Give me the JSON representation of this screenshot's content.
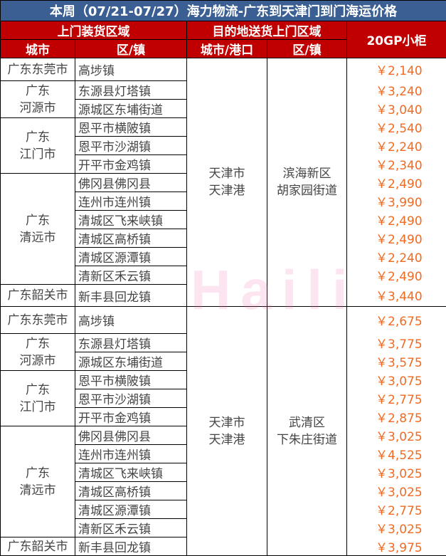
{
  "title": "本周（07/21-07/27）海力物流-广东到天津门到门海运价格",
  "headers": {
    "origin": "上门装货区域",
    "dest": "目的地送货上门区域",
    "price": "20GP小柜",
    "city": "城市",
    "town": "区/镇",
    "port": "城市/港口",
    "dest_town": "区/镇"
  },
  "watermark": "Haili",
  "blocks": [
    {
      "port": "天津市\n天津港",
      "dest_town": "滨海新区\n胡家园街道",
      "groups": [
        {
          "city": "广东东莞市",
          "rows": [
            {
              "town": "高埗镇",
              "price": "￥2,140"
            }
          ]
        },
        {
          "city": "广东\n河源市",
          "rows": [
            {
              "town": "东源县灯塔镇",
              "price": "￥3,240"
            },
            {
              "town": "源城区东埔街道",
              "price": "￥3,040"
            }
          ]
        },
        {
          "city": "广东\n江门市",
          "rows": [
            {
              "town": "恩平市横陂镇",
              "price": "￥2,540"
            },
            {
              "town": "恩平市沙湖镇",
              "price": "￥2,240"
            },
            {
              "town": "开平市金鸡镇",
              "price": "￥2,340"
            }
          ]
        },
        {
          "city": "广东\n清远市",
          "rows": [
            {
              "town": "佛冈县佛冈县",
              "price": "￥2,490"
            },
            {
              "town": "连州市连州镇",
              "price": "￥3,990"
            },
            {
              "town": "清城区飞来峡镇",
              "price": "￥2,490"
            },
            {
              "town": "清城区高桥镇",
              "price": "￥2,490"
            },
            {
              "town": "清城区源潭镇",
              "price": "￥2,240"
            },
            {
              "town": "清新区禾云镇",
              "price": "￥2,490"
            }
          ]
        },
        {
          "city": "广东韶关市",
          "rows": [
            {
              "town": "新丰县回龙镇",
              "price": "￥3,440"
            }
          ]
        }
      ]
    },
    {
      "port": "天津市\n天津港",
      "dest_town": "武清区\n下朱庄街道",
      "groups": [
        {
          "city": "广东东莞市",
          "rows": [
            {
              "town": "高埗镇",
              "price": "￥2,675"
            }
          ]
        },
        {
          "city": "广东\n河源市",
          "rows": [
            {
              "town": "东源县灯塔镇",
              "price": "￥3,775"
            },
            {
              "town": "源城区东埔街道",
              "price": "￥3,575"
            }
          ]
        },
        {
          "city": "广东\n江门市",
          "rows": [
            {
              "town": "恩平市横陂镇",
              "price": "￥3,075"
            },
            {
              "town": "恩平市沙湖镇",
              "price": "￥2,775"
            },
            {
              "town": "开平市金鸡镇",
              "price": "￥2,875"
            }
          ]
        },
        {
          "city": "广东\n清远市",
          "rows": [
            {
              "town": "佛冈县佛冈县",
              "price": "￥3,025"
            },
            {
              "town": "连州市连州镇",
              "price": "￥4,525"
            },
            {
              "town": "清城区飞来峡镇",
              "price": "￥3,025"
            },
            {
              "town": "清城区高桥镇",
              "price": "￥3,025"
            },
            {
              "town": "清城区源潭镇",
              "price": "￥2,775"
            },
            {
              "town": "清新区禾云镇",
              "price": "￥3,025"
            }
          ]
        },
        {
          "city": "广东韶关市",
          "rows": [
            {
              "town": "新丰县回龙镇",
              "price": "￥3,975"
            }
          ]
        }
      ]
    }
  ]
}
